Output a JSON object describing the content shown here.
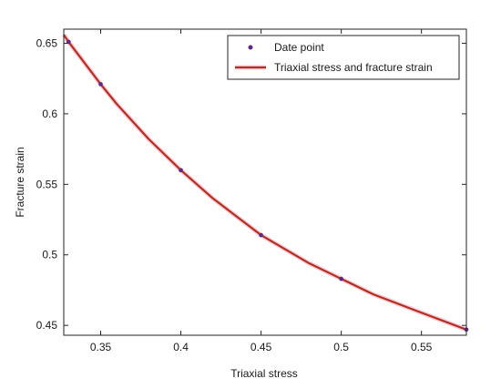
{
  "chart_data": {
    "type": "line",
    "xlabel": "Triaxial stress",
    "ylabel": "Fracture strain",
    "xlim": [
      0.327,
      0.578
    ],
    "ylim": [
      0.443,
      0.66
    ],
    "xticks": [
      0.35,
      0.4,
      0.45,
      0.5,
      0.55
    ],
    "xtick_labels": [
      "0.35",
      "0.4",
      "0.45",
      "0.5",
      "0.55"
    ],
    "yticks": [
      0.45,
      0.5,
      0.55,
      0.6,
      0.65
    ],
    "ytick_labels": [
      "0.45",
      "0.5",
      "0.55",
      "0.6",
      "0.65"
    ],
    "grid": false,
    "legend_position": "top-right",
    "series": [
      {
        "name": "Date point",
        "style": "markers",
        "color": "#5b2a86",
        "x": [
          0.33,
          0.35,
          0.4,
          0.45,
          0.5,
          0.578
        ],
        "y": [
          0.651,
          0.621,
          0.56,
          0.514,
          0.483,
          0.447
        ]
      },
      {
        "name": "Triaxial stress and fracture strain",
        "style": "line",
        "color": "#b5301c",
        "glow": "#f0a8c6",
        "x": [
          0.327,
          0.33,
          0.34,
          0.35,
          0.36,
          0.38,
          0.4,
          0.42,
          0.45,
          0.48,
          0.5,
          0.52,
          0.55,
          0.578
        ],
        "y": [
          0.656,
          0.651,
          0.636,
          0.621,
          0.607,
          0.582,
          0.56,
          0.54,
          0.514,
          0.494,
          0.483,
          0.472,
          0.459,
          0.447
        ]
      }
    ]
  }
}
